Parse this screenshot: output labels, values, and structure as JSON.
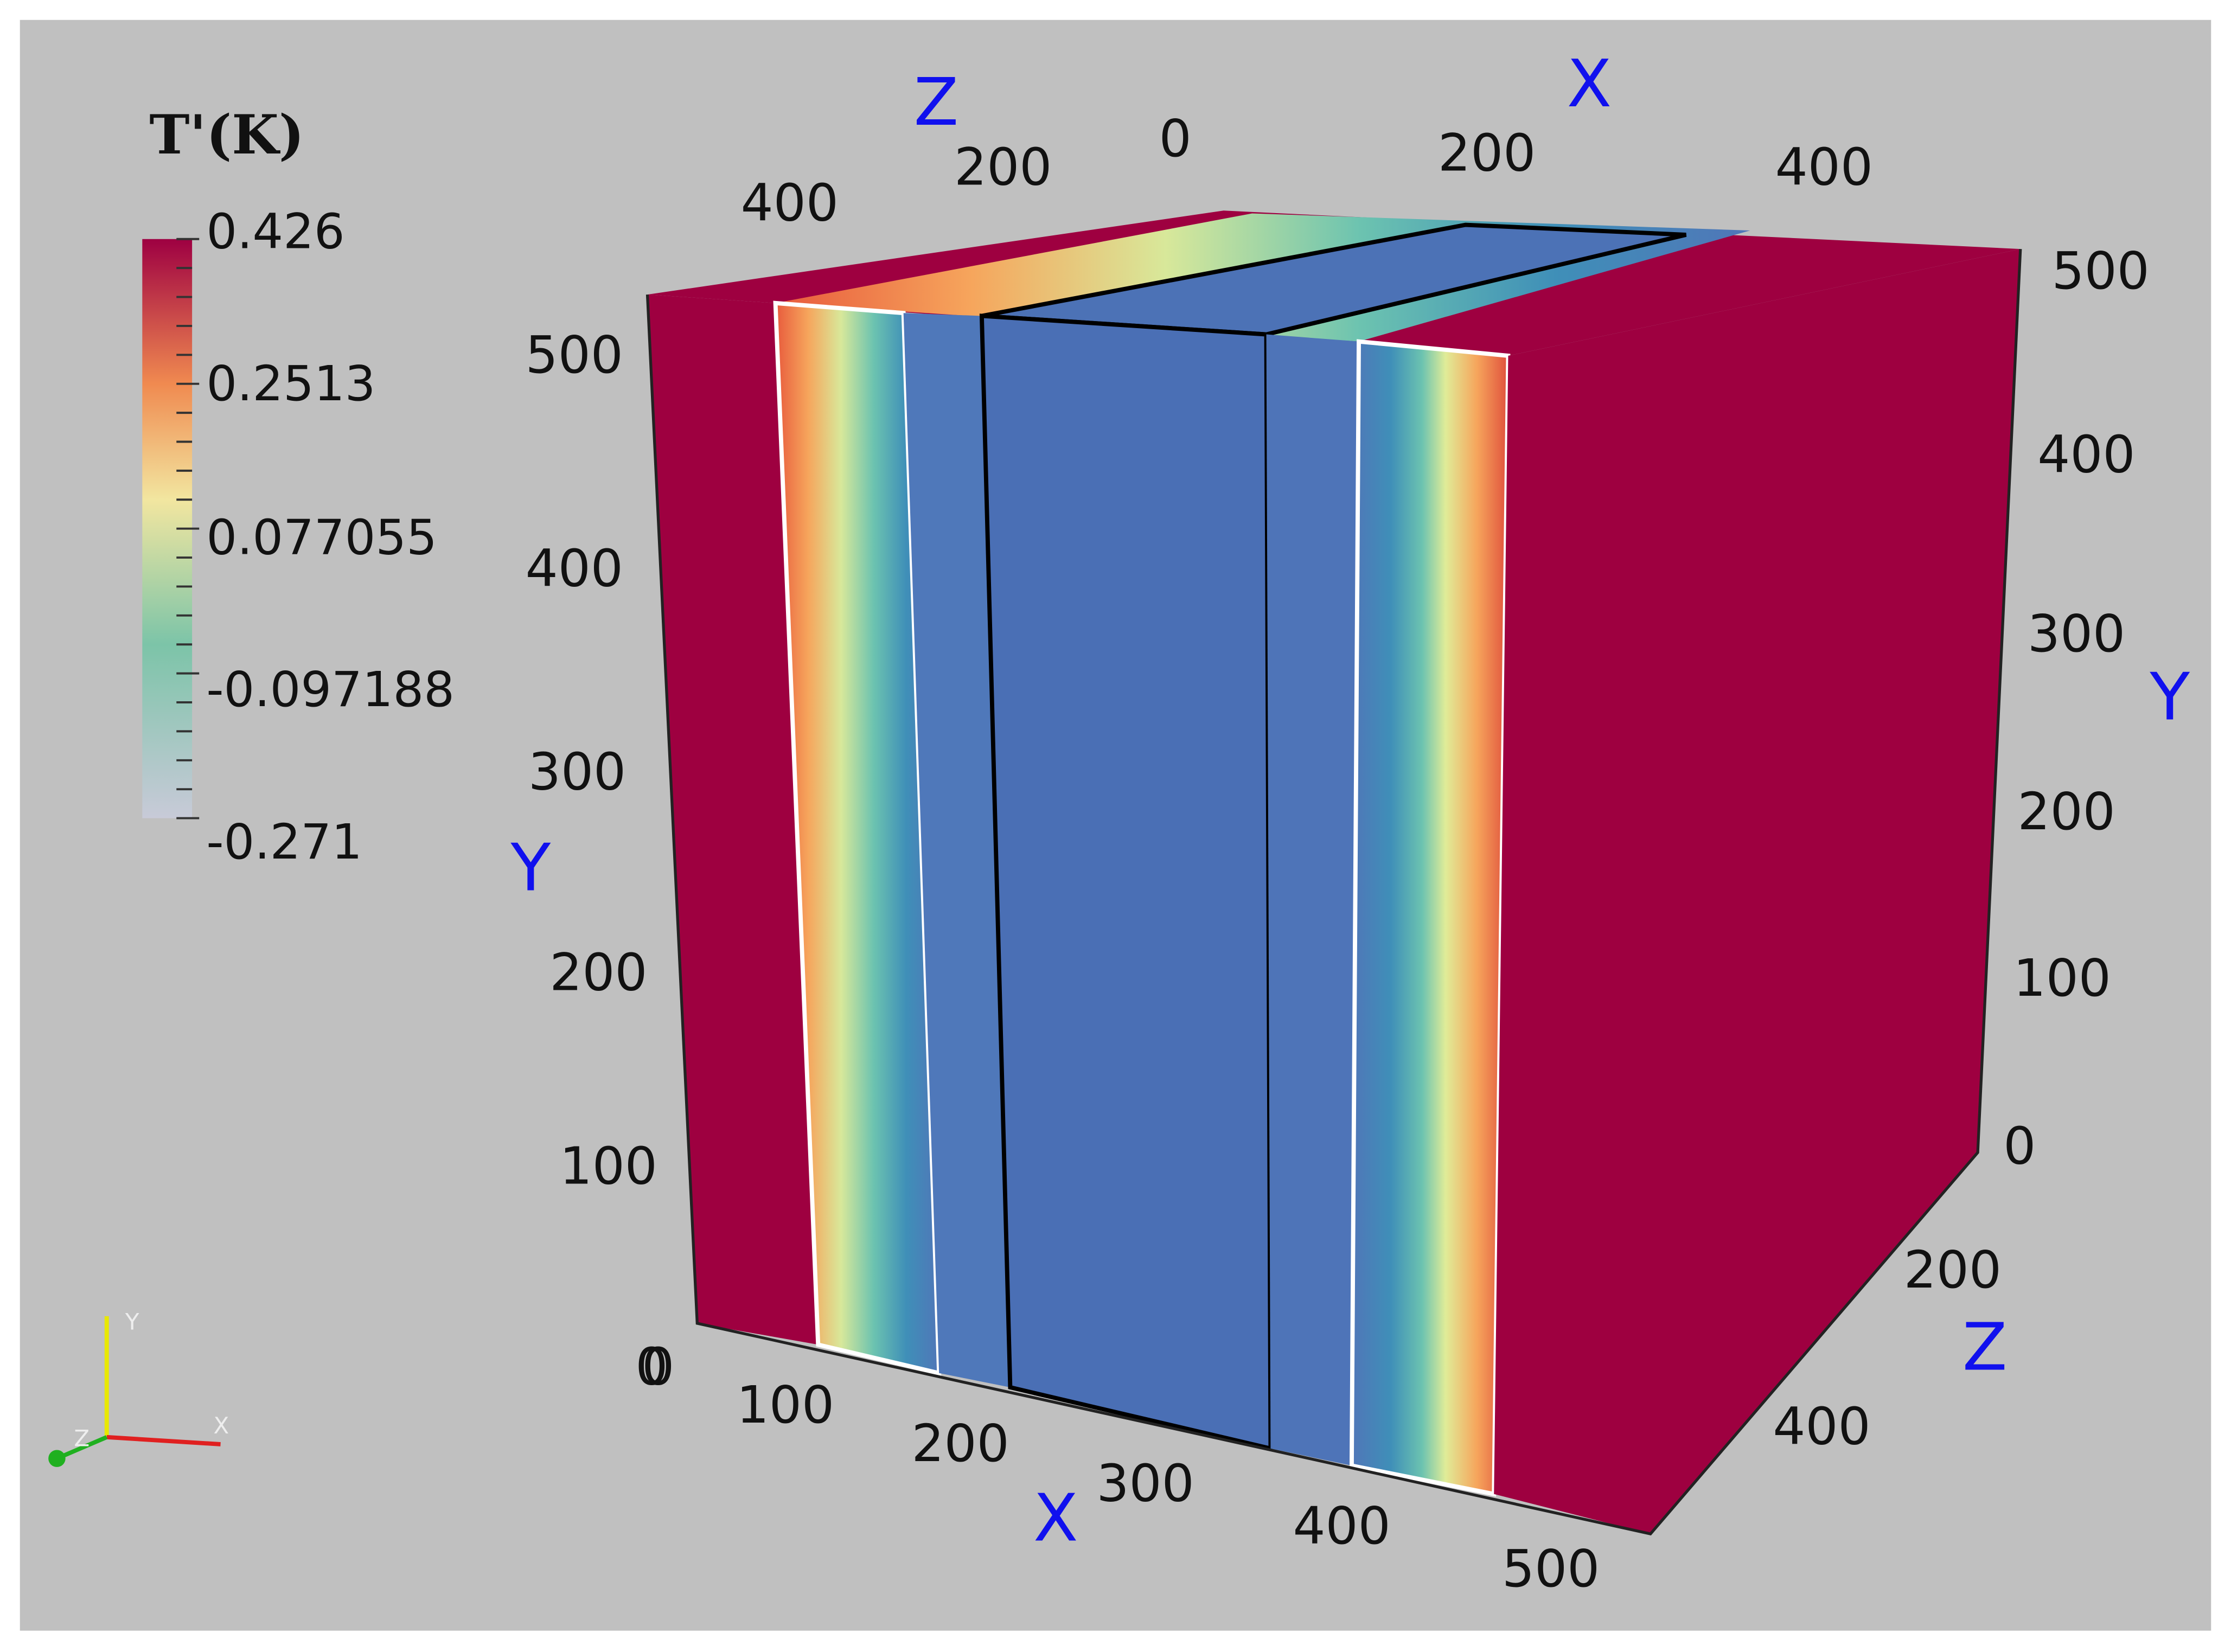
{
  "colorbar": {
    "title": "T'(K)",
    "labels": [
      "0.426",
      "0.2513",
      "0.077055",
      "-0.097188",
      "-0.271"
    ]
  },
  "axes": {
    "top_z": {
      "title": "Z",
      "ticks": [
        "400",
        "200",
        "0"
      ]
    },
    "top_x": {
      "title": "X",
      "ticks": [
        "200",
        "400"
      ]
    },
    "left_y": {
      "title": "Y",
      "ticks": [
        "500",
        "400",
        "300",
        "200",
        "100",
        "0"
      ]
    },
    "right_y": {
      "title": "Y",
      "ticks": [
        "500",
        "400",
        "300",
        "200",
        "100",
        "0"
      ]
    },
    "right_z": {
      "title": "Z",
      "ticks": [
        "200",
        "400"
      ]
    },
    "bottom_x": {
      "title": "X",
      "ticks": [
        "0",
        "100",
        "200",
        "300",
        "400",
        "500"
      ]
    }
  },
  "orientation": {
    "labels": [
      "Y",
      "Z",
      "X"
    ]
  }
}
